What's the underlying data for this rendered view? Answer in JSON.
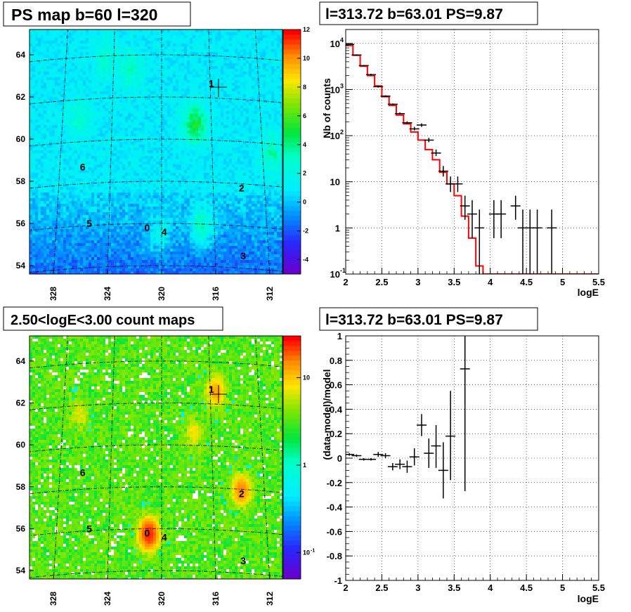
{
  "panels": {
    "top_left": {
      "title": "PS map b=60 l=320",
      "x_ticks": [
        "328",
        "324",
        "320",
        "316",
        "312"
      ],
      "y_ticks": [
        "54",
        "56",
        "58",
        "60",
        "62",
        "64"
      ],
      "colorbar_ticks": [
        "-4",
        "-2",
        "0",
        "2",
        "4",
        "6",
        "8",
        "10",
        "12"
      ],
      "source_labels": [
        {
          "label": "0",
          "l": 321.1,
          "b": 55.8
        },
        {
          "label": "1",
          "l": 315.9,
          "b": 62.7
        },
        {
          "label": "2",
          "l": 313.8,
          "b": 57.8
        },
        {
          "label": "3",
          "l": 313.9,
          "b": 54.6
        },
        {
          "label": "4",
          "l": 319.8,
          "b": 55.6
        },
        {
          "label": "5",
          "l": 325.5,
          "b": 56.1
        },
        {
          "label": "6",
          "l": 326.2,
          "b": 58.8
        }
      ]
    },
    "bottom_left": {
      "title": "2.50<logE<3.00 count maps",
      "x_ticks": [
        "328",
        "324",
        "320",
        "316",
        "312"
      ],
      "y_ticks": [
        "54",
        "56",
        "58",
        "60",
        "62",
        "64"
      ],
      "colorbar_ticks": [
        "10",
        "1",
        "10"
      ],
      "colorbar_exponent": "-1",
      "source_labels": [
        {
          "label": "0",
          "l": 321.1,
          "b": 55.8
        },
        {
          "label": "1",
          "l": 315.9,
          "b": 62.7
        },
        {
          "label": "2",
          "l": 313.8,
          "b": 57.8
        },
        {
          "label": "3",
          "l": 313.9,
          "b": 54.6
        },
        {
          "label": "4",
          "l": 319.8,
          "b": 55.6
        },
        {
          "label": "5",
          "l": 325.5,
          "b": 56.1
        },
        {
          "label": "6",
          "l": 326.2,
          "b": 58.8
        }
      ]
    },
    "top_right": {
      "title": "l=313.72 b=63.01 PS=9.87",
      "ylabel": "Nb of counts",
      "xlabel": "logE",
      "x_ticks": [
        "2",
        "2.5",
        "3",
        "3.5",
        "4",
        "4.5",
        "5",
        "5.5"
      ],
      "y_ticks": [
        "10",
        "1",
        "10",
        "10",
        "10",
        "10"
      ],
      "y_exponents": [
        "-1",
        "",
        "",
        "2",
        "3",
        "4"
      ]
    },
    "bottom_right": {
      "title": "l=313.72 b=63.01 PS=9.87",
      "ylabel": "(data-model)/model",
      "xlabel": "logE",
      "x_ticks": [
        "2",
        "2.5",
        "3",
        "3.5",
        "4",
        "4.5",
        "5",
        "5.5"
      ],
      "y_ticks": [
        "-1",
        "-0.8",
        "-0.6",
        "-0.4",
        "-0.2",
        "0",
        "0.2",
        "0.4",
        "0.6",
        "0.8",
        "1"
      ]
    }
  },
  "chart_data": [
    {
      "type": "heatmap",
      "title": "PS map b=60 l=320",
      "xlim": [
        330,
        310
      ],
      "ylim": [
        53.6,
        65.2
      ],
      "zlim": [
        -5,
        12
      ],
      "grid": true
    },
    {
      "type": "heatmap",
      "title": "2.50<logE<3.00 count maps",
      "xlim": [
        330,
        310
      ],
      "ylim": [
        53.6,
        65.2
      ],
      "zlim": [
        0.05,
        30
      ],
      "zscale": "log",
      "grid": true
    },
    {
      "type": "line",
      "title": "l=313.72 b=63.01 PS=9.87",
      "xlabel": "logE",
      "ylabel": "Nb of counts",
      "xlim": [
        2,
        5.5
      ],
      "ylim": [
        0.1,
        20000
      ],
      "yscale": "log",
      "grid": true,
      "series": [
        {
          "style": "step",
          "color": "#ff0000",
          "bin_edges": [
            2.0,
            2.1,
            2.2,
            2.3,
            2.4,
            2.5,
            2.6,
            2.7,
            2.8,
            2.9,
            3.0,
            3.1,
            3.2,
            3.3,
            3.4,
            3.5,
            3.6,
            3.7,
            3.8,
            3.9,
            4.0,
            4.1,
            4.2,
            4.3,
            4.4,
            4.5,
            4.6,
            4.7,
            4.8,
            4.9,
            5.0,
            5.1,
            5.2,
            5.3,
            5.4,
            5.5
          ],
          "values": [
            9000,
            5500,
            3200,
            2000,
            1200,
            700,
            450,
            280,
            180,
            120,
            80,
            50,
            30,
            16,
            9,
            5,
            1.8,
            0.6,
            0.15,
            0.1,
            0.1,
            0.1,
            0.1,
            0.1,
            0.1,
            0.1,
            0.1,
            0.1,
            0.1,
            0.1,
            0.1,
            0.1,
            0.1,
            0.1,
            0.1
          ]
        },
        {
          "style": "errorbar",
          "color": "#000000",
          "x": [
            2.05,
            2.15,
            2.25,
            2.35,
            2.45,
            2.55,
            2.65,
            2.75,
            2.85,
            2.95,
            3.05,
            3.15,
            3.25,
            3.35,
            3.45,
            3.55,
            3.65,
            3.75,
            3.85,
            4.05,
            4.15,
            4.35,
            4.45,
            4.55,
            4.65,
            4.85
          ],
          "y": [
            9500,
            5600,
            3300,
            2100,
            1150,
            720,
            480,
            300,
            190,
            140,
            170,
            80,
            42,
            17,
            9,
            9,
            3,
            2,
            1,
            2,
            2,
            3,
            1,
            1,
            1,
            1
          ],
          "ylow": [
            9300,
            5400,
            3200,
            2000,
            1100,
            690,
            460,
            290,
            180,
            130,
            155,
            72,
            36,
            13,
            6,
            6,
            1.5,
            0.6,
            0.1,
            0.6,
            0.6,
            1.5,
            0.1,
            0.1,
            0.1,
            0.1
          ],
          "yhigh": [
            9700,
            5800,
            3400,
            2200,
            1200,
            750,
            500,
            320,
            205,
            155,
            185,
            90,
            50,
            22,
            13,
            13,
            5,
            4,
            2.5,
            4,
            4,
            5,
            2.5,
            2.5,
            2.5,
            2.5
          ]
        }
      ]
    },
    {
      "type": "scatter",
      "title": "l=313.72 b=63.01 PS=9.87",
      "xlabel": "logE",
      "ylabel": "(data-model)/model",
      "xlim": [
        2,
        5.5
      ],
      "ylim": [
        -1,
        1
      ],
      "grid": true,
      "series": [
        {
          "style": "errorbar",
          "color": "#000000",
          "x": [
            2.05,
            2.15,
            2.25,
            2.35,
            2.45,
            2.55,
            2.65,
            2.75,
            2.85,
            2.95,
            3.05,
            3.15,
            3.25,
            3.35,
            3.45,
            3.65
          ],
          "y": [
            0.03,
            0.02,
            -0.01,
            -0.01,
            0.03,
            0.02,
            -0.07,
            -0.05,
            -0.07,
            0.01,
            0.27,
            0.04,
            0.1,
            -0.1,
            0.18,
            0.73
          ],
          "ylow": [
            0.02,
            0.01,
            -0.02,
            -0.02,
            0.01,
            0.0,
            -0.1,
            -0.09,
            -0.12,
            -0.06,
            0.18,
            -0.08,
            -0.08,
            -0.33,
            -0.18,
            -0.27
          ],
          "yhigh": [
            0.04,
            0.03,
            0.0,
            0.0,
            0.05,
            0.04,
            -0.04,
            -0.01,
            -0.02,
            0.08,
            0.36,
            0.16,
            0.27,
            0.13,
            0.55,
            1.0
          ]
        }
      ]
    }
  ]
}
